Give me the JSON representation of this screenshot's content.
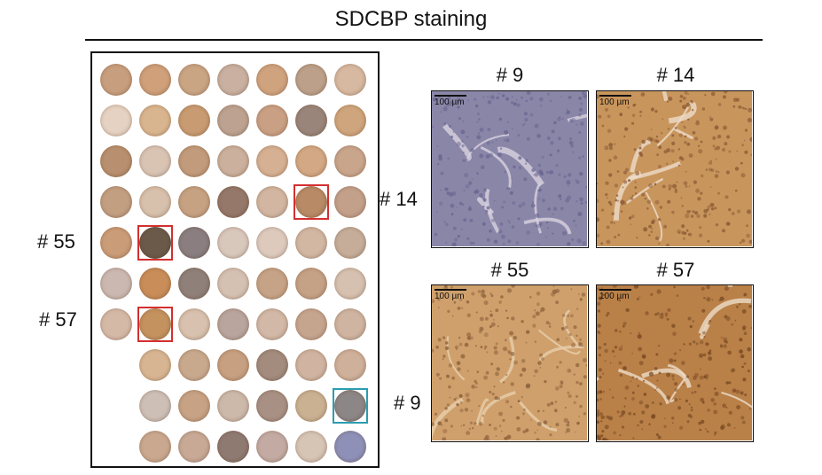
{
  "title": "SDCBP staining",
  "tma": {
    "row_labels": [
      "# 55",
      "# 57"
    ],
    "highlight_colors": {
      "red": "#d32f2f",
      "teal": "#2a9db0"
    },
    "cores": [
      [
        "#c89f7e",
        "#cfa07a",
        "#caa584",
        "#c9b0a0",
        "#d0a37f",
        "#bca08a",
        "#d7b9a1"
      ],
      [
        "#e6d2c2",
        "#d9b58f",
        "#c99b72",
        "#bda291",
        "#caa084",
        "#9a857a",
        "#cfa57d"
      ],
      [
        "#b8906f",
        "#d9c4b4",
        "#c19b7b",
        "#cbb09d",
        "#d6b093",
        "#d3a884",
        "#c9a58c"
      ],
      [
        "#c39f82",
        "#d7c0ac",
        "#c6a283",
        "#95786a",
        "#d2b6a1",
        "#b88a66",
        "#c3a08a"
      ],
      [
        "#ca9c78",
        "#6b5a4a",
        "#8a7e80",
        "#d8c7bb",
        "#ddcabd",
        "#d2b7a3",
        "#c5ad9a"
      ],
      [
        "#cbb8b0",
        "#c88d59",
        "#8f8079",
        "#d5c1b2",
        "#c6a386",
        "#c5a185",
        "#d6c0af"
      ],
      [
        "#d5b9a7",
        "#c4925f",
        "#d8c1ae",
        "#b9a59d",
        "#d2b8a6",
        "#c6a58f",
        "#cfb4a1"
      ],
      [
        null,
        "#d8b592",
        "#c9a98e",
        "#c6a080",
        "#a38b7d",
        "#d0b4a1",
        "#cfb09a"
      ],
      [
        null,
        "#cdbfb6",
        "#c7a284",
        "#cdb9aa",
        "#a89184",
        "#cab192",
        "#8d8686"
      ],
      [
        null,
        "#c9a88f",
        "#c7a995",
        "#8f7a72",
        "#c3aba3",
        "#d6c4b4",
        "#8e90b8"
      ]
    ]
  },
  "panels": [
    {
      "label": "# 9",
      "scale": "100 µm",
      "base": "#8a86a8",
      "spot": "#6a6590",
      "fiber": "#d8d2de"
    },
    {
      "label": "# 14",
      "scale": "100 µm",
      "base": "#c8955c",
      "spot": "#8a5a34",
      "fiber": "#eedccb"
    },
    {
      "label": "# 55",
      "scale": "100 µm",
      "base": "#cfa06b",
      "spot": "#8d623d",
      "fiber": "#e7cfae"
    },
    {
      "label": "# 57",
      "scale": "100 µm",
      "base": "#b98048",
      "spot": "#7a4a22",
      "fiber": "#ecdcc9"
    }
  ],
  "side_labels": [
    "# 14",
    "# 9"
  ]
}
